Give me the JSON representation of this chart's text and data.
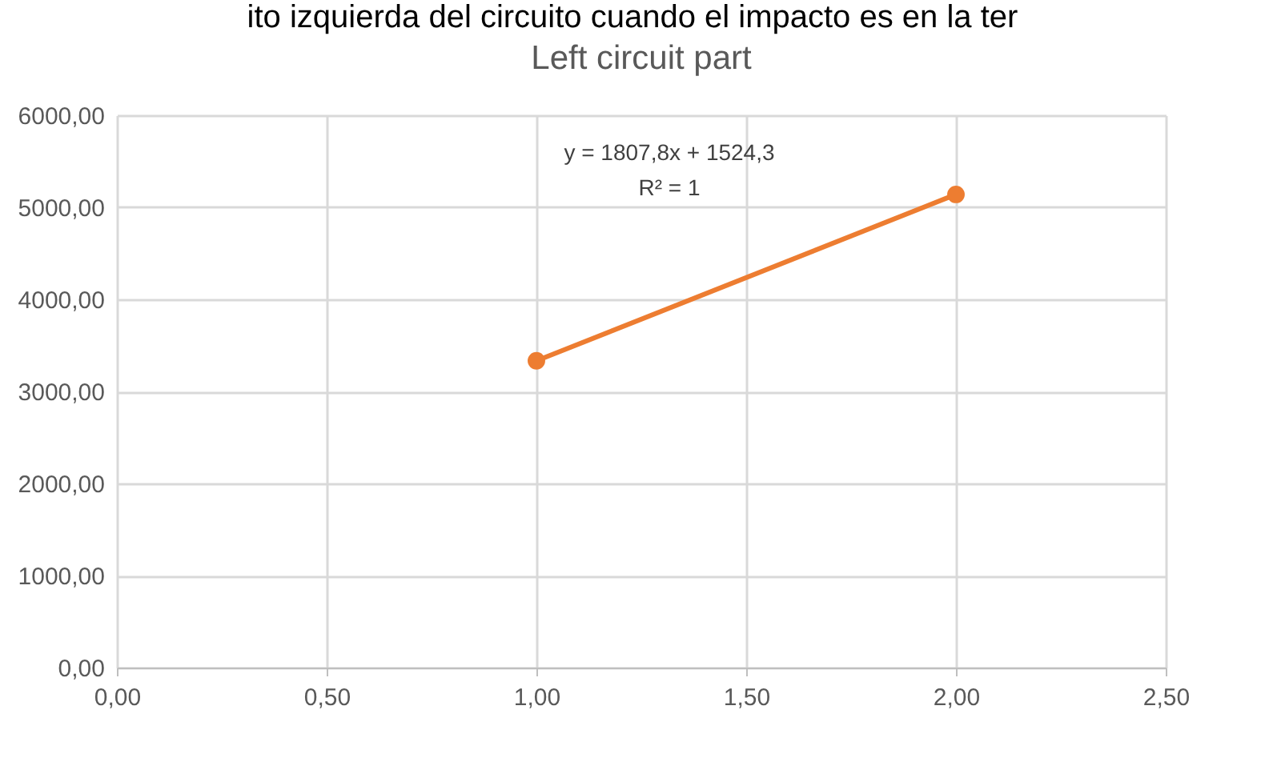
{
  "chart_data": {
    "type": "line",
    "title": "Left circuit part",
    "x": [
      1,
      2
    ],
    "series": [
      {
        "color": "#ed7d31",
        "values": [
          3332,
          5140
        ]
      }
    ],
    "xlim": [
      0,
      2.5
    ],
    "xticks": [
      {
        "value": 0,
        "label": "0,00"
      },
      {
        "value": 0.5,
        "label": "0,50"
      },
      {
        "value": 1,
        "label": "1,00"
      },
      {
        "value": 1.5,
        "label": "1,50"
      },
      {
        "value": 2,
        "label": "2,00"
      },
      {
        "value": 2.5,
        "label": "2,50"
      }
    ],
    "ylim": [
      0,
      6000
    ],
    "yticks": [
      {
        "value": 0,
        "label": "0,00"
      },
      {
        "value": 1000,
        "label": "1000,00"
      },
      {
        "value": 2000,
        "label": "2000,00"
      },
      {
        "value": 3000,
        "label": "3000,00"
      },
      {
        "value": 4000,
        "label": "4000,00"
      },
      {
        "value": 5000,
        "label": "5000,00"
      },
      {
        "value": 6000,
        "label": "6000,00"
      }
    ],
    "annotations": [
      "ito izquierda del circuito cuando el impacto es en la ter",
      "y = 1807,8x + 1524,3",
      "R² = 1"
    ],
    "grid": true,
    "marker": "circle",
    "line_style": "solid"
  }
}
